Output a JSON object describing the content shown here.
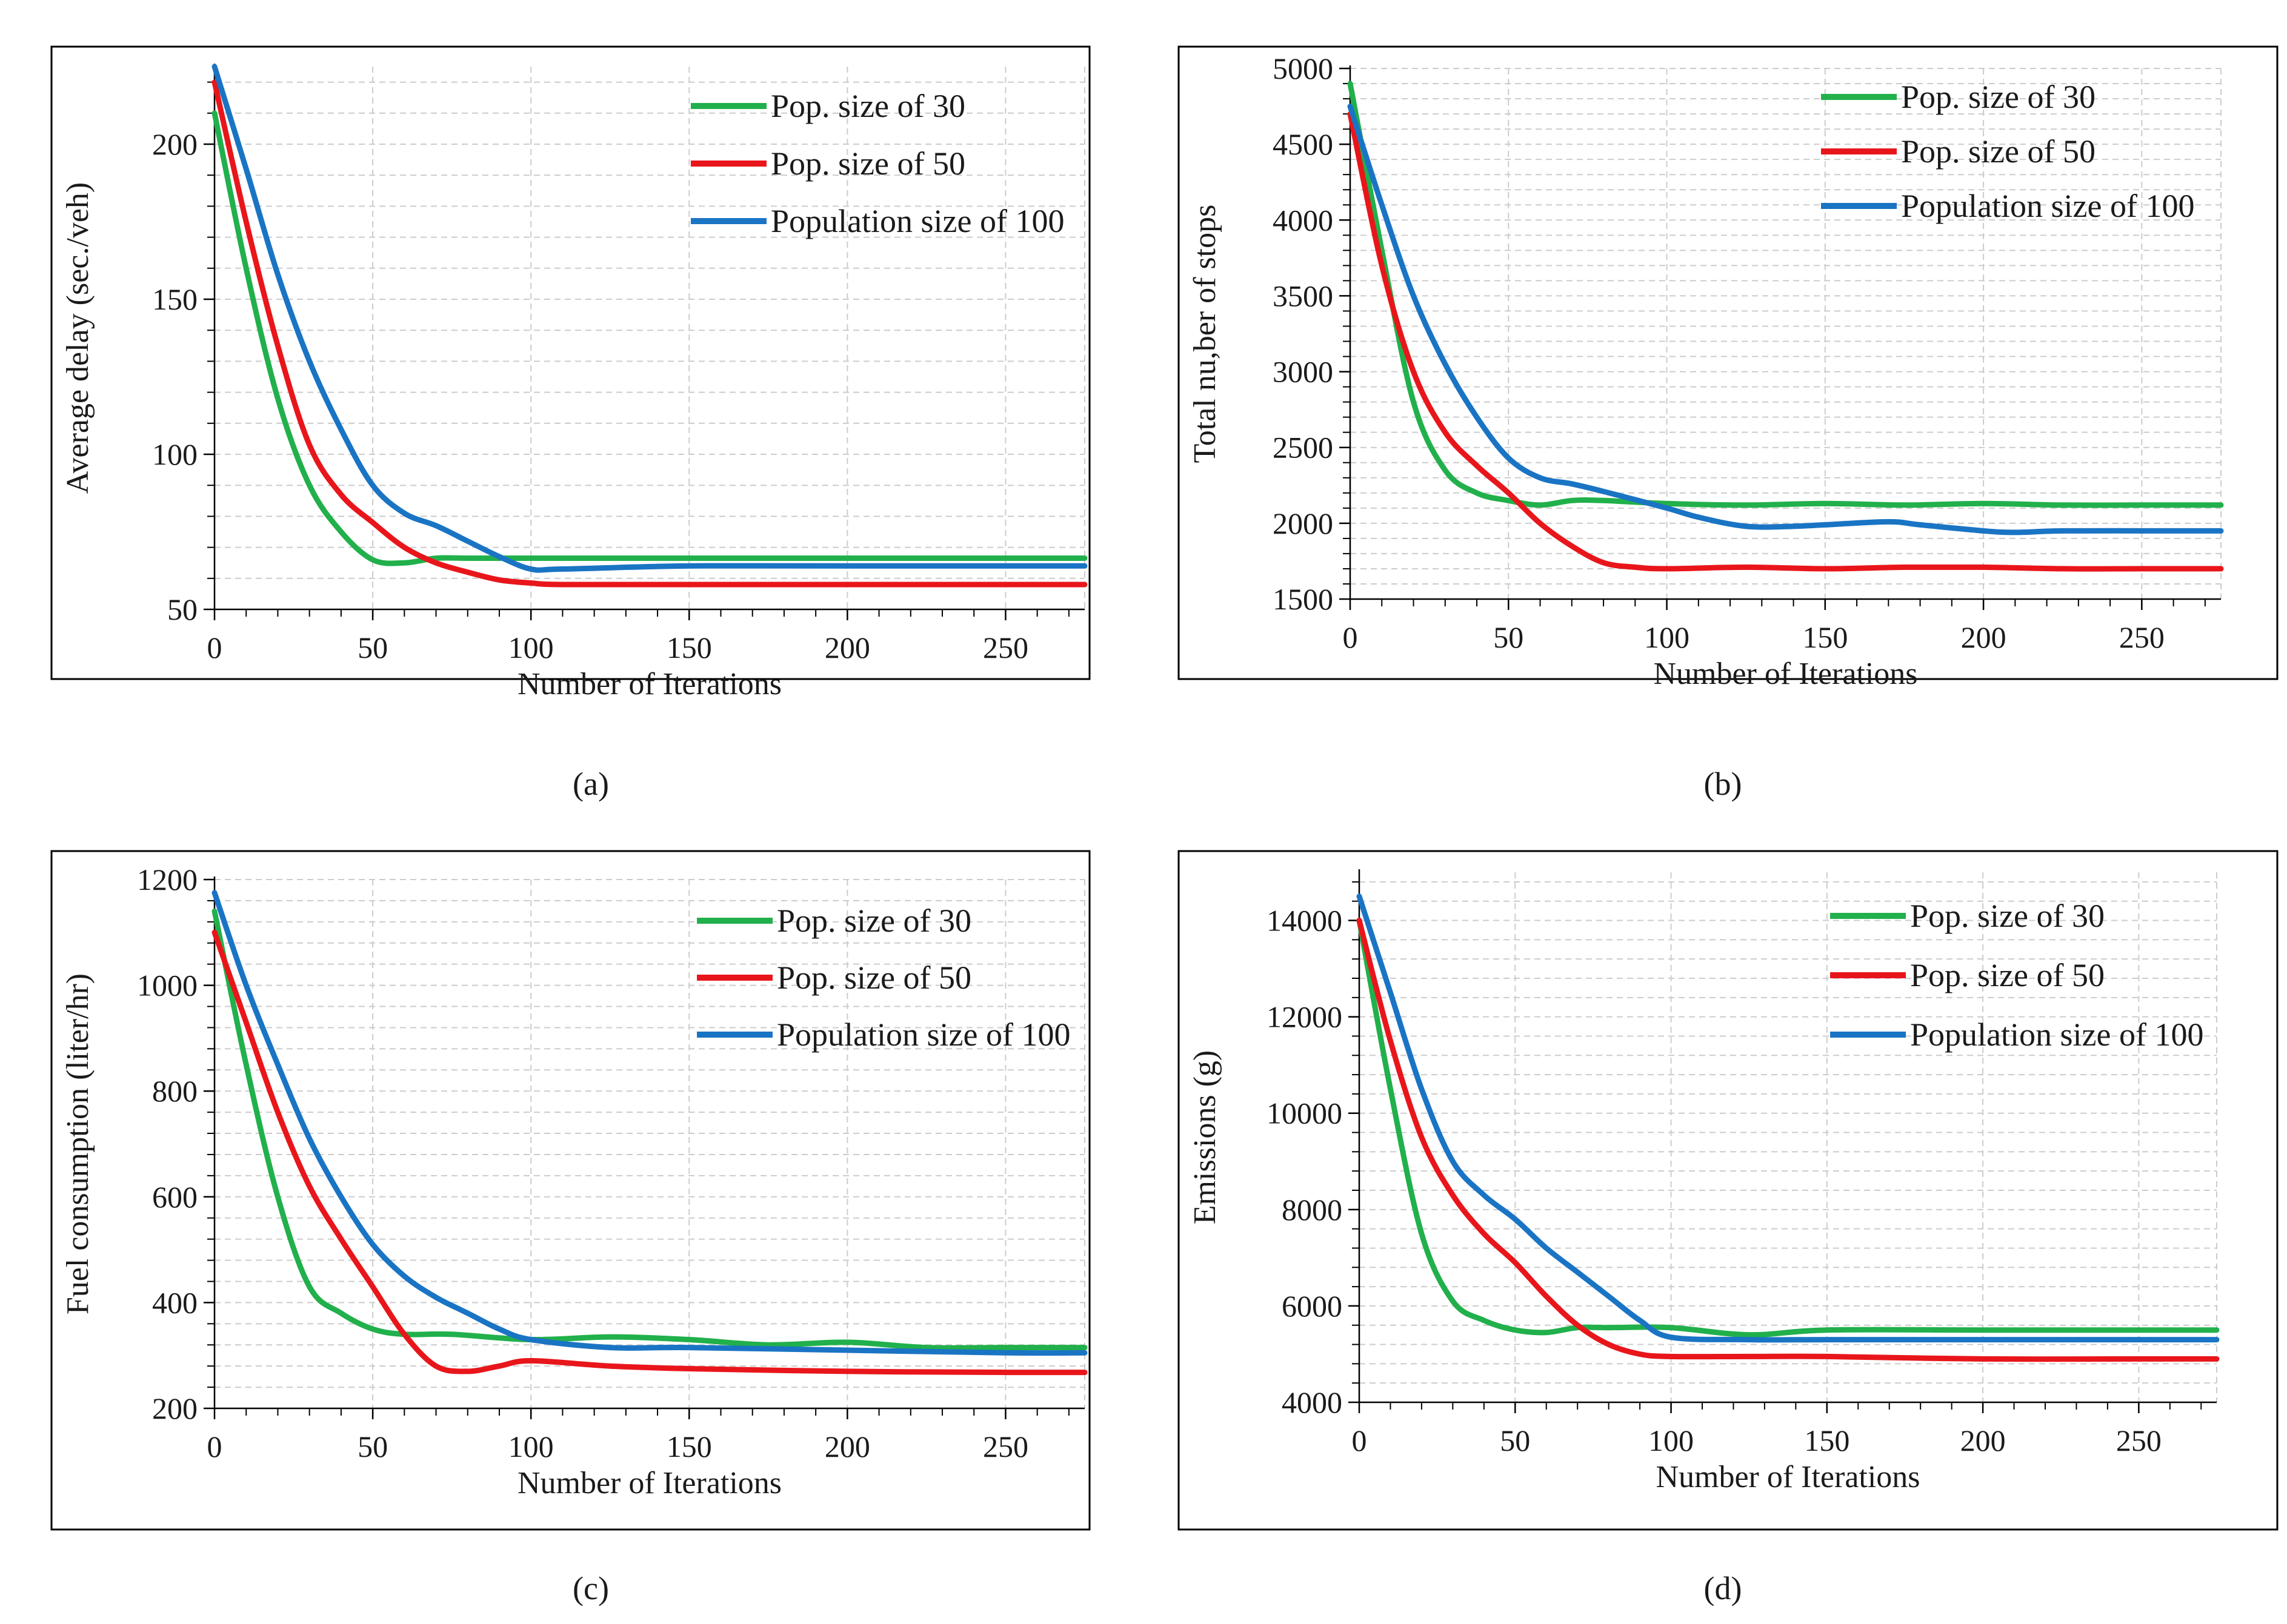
{
  "colors": {
    "green": "#21b04b",
    "red": "#e8161b",
    "blue": "#1a74c4"
  },
  "legend": [
    "Pop. size of 30",
    "Pop. size of 50",
    "Population size of 100"
  ],
  "chart_data": [
    {
      "id": "a",
      "type": "line",
      "caption": "(a)",
      "xlabel": "Number of Iterations",
      "ylabel": "Average delay (sec./veh)",
      "xlim": [
        0,
        275
      ],
      "ylim": [
        50,
        225
      ],
      "xticks": [
        0,
        50,
        100,
        150,
        200,
        250
      ],
      "yticks": [
        50,
        100,
        150,
        200
      ],
      "legend_position": "top-right",
      "series": [
        {
          "name": "Pop. size of 30",
          "color": "#21b04b",
          "x": [
            0,
            10,
            20,
            30,
            40,
            50,
            60,
            70,
            80,
            100,
            150,
            200,
            275
          ],
          "y": [
            210,
            160,
            118,
            90,
            75,
            66,
            65,
            66.5,
            66.5,
            66.5,
            66.5,
            66.5,
            66.5
          ]
        },
        {
          "name": "Pop. size of 50",
          "color": "#e8161b",
          "x": [
            0,
            10,
            20,
            30,
            40,
            50,
            60,
            70,
            80,
            90,
            100,
            110,
            150,
            200,
            275
          ],
          "y": [
            220,
            175,
            135,
            103,
            87,
            78,
            70,
            65,
            62,
            59.5,
            58.5,
            58,
            58,
            58,
            58
          ]
        },
        {
          "name": "Population size of 100",
          "color": "#1a74c4",
          "x": [
            0,
            10,
            20,
            30,
            40,
            50,
            60,
            70,
            80,
            90,
            100,
            110,
            150,
            200,
            275
          ],
          "y": [
            225,
            192,
            158,
            130,
            108,
            90,
            81,
            77,
            72,
            67,
            63,
            63,
            64,
            64,
            64
          ]
        }
      ]
    },
    {
      "id": "b",
      "type": "line",
      "caption": "(b)",
      "xlabel": "Number of Iterations",
      "ylabel": "Total nu,ber of stops",
      "xlim": [
        0,
        275
      ],
      "ylim": [
        1500,
        5000
      ],
      "xticks": [
        0,
        50,
        100,
        150,
        200,
        250
      ],
      "yticks": [
        1500,
        2000,
        2500,
        3000,
        3500,
        4000,
        4500,
        5000
      ],
      "legend_position": "top-right",
      "series": [
        {
          "name": "Pop. size of 30",
          "color": "#21b04b",
          "x": [
            0,
            10,
            20,
            30,
            40,
            50,
            60,
            70,
            80,
            100,
            125,
            150,
            175,
            200,
            225,
            250,
            275
          ],
          "y": [
            4900,
            3800,
            2800,
            2350,
            2200,
            2150,
            2120,
            2150,
            2150,
            2130,
            2120,
            2130,
            2120,
            2130,
            2120,
            2120,
            2120
          ]
        },
        {
          "name": "Pop. size of 50",
          "color": "#e8161b",
          "x": [
            0,
            10,
            20,
            30,
            40,
            50,
            60,
            70,
            80,
            90,
            100,
            125,
            150,
            175,
            200,
            225,
            250,
            275
          ],
          "y": [
            4700,
            3700,
            3000,
            2600,
            2380,
            2200,
            2000,
            1850,
            1740,
            1710,
            1700,
            1710,
            1700,
            1710,
            1710,
            1700,
            1700,
            1700
          ]
        },
        {
          "name": "Population size of 100",
          "color": "#1a74c4",
          "x": [
            0,
            10,
            20,
            30,
            40,
            50,
            60,
            70,
            80,
            100,
            110,
            125,
            140,
            150,
            170,
            180,
            200,
            210,
            225,
            250,
            275
          ],
          "y": [
            4750,
            4100,
            3500,
            3050,
            2700,
            2430,
            2300,
            2260,
            2210,
            2100,
            2040,
            1980,
            1980,
            1990,
            2010,
            1990,
            1950,
            1940,
            1950,
            1950,
            1950
          ]
        }
      ]
    },
    {
      "id": "c",
      "type": "line",
      "caption": "(c)",
      "xlabel": "Number of Iterations",
      "ylabel": "Fuel consumption (liter/hr)",
      "xlim": [
        0,
        275
      ],
      "ylim": [
        200,
        1200
      ],
      "xticks": [
        0,
        50,
        100,
        150,
        200,
        250
      ],
      "yticks": [
        200,
        400,
        600,
        800,
        1000,
        1200
      ],
      "legend_position": "top-right",
      "series": [
        {
          "name": "Pop. size of 30",
          "color": "#21b04b",
          "x": [
            0,
            10,
            20,
            30,
            40,
            50,
            60,
            75,
            100,
            125,
            150,
            175,
            200,
            225,
            250,
            275
          ],
          "y": [
            1140,
            850,
            600,
            430,
            380,
            350,
            340,
            340,
            330,
            335,
            330,
            320,
            325,
            315,
            315,
            315
          ]
        },
        {
          "name": "Pop. size of 50",
          "color": "#e8161b",
          "x": [
            0,
            10,
            20,
            30,
            40,
            50,
            60,
            70,
            80,
            90,
            100,
            125,
            150,
            200,
            250,
            275
          ],
          "y": [
            1100,
            930,
            760,
            620,
            520,
            430,
            340,
            280,
            270,
            280,
            290,
            280,
            275,
            270,
            268,
            268
          ]
        },
        {
          "name": "Population size of 100",
          "color": "#1a74c4",
          "x": [
            0,
            10,
            20,
            30,
            40,
            50,
            60,
            70,
            80,
            90,
            100,
            125,
            150,
            200,
            250,
            275
          ],
          "y": [
            1175,
            1000,
            850,
            710,
            600,
            510,
            450,
            410,
            380,
            350,
            330,
            315,
            315,
            310,
            305,
            305
          ]
        }
      ]
    },
    {
      "id": "d",
      "type": "line",
      "caption": "(d)",
      "xlabel": "Number of Iterations",
      "ylabel": "Emissions (g)",
      "xlim": [
        0,
        275
      ],
      "ylim": [
        4000,
        15000
      ],
      "xticks": [
        0,
        50,
        100,
        150,
        200,
        250
      ],
      "yticks": [
        4000,
        6000,
        8000,
        10000,
        12000,
        14000
      ],
      "legend_position": "top-right",
      "series": [
        {
          "name": "Pop. size of 30",
          "color": "#21b04b",
          "x": [
            0,
            10,
            20,
            30,
            40,
            50,
            60,
            70,
            80,
            100,
            125,
            150,
            200,
            250,
            275
          ],
          "y": [
            14000,
            10500,
            7500,
            6100,
            5700,
            5500,
            5450,
            5550,
            5550,
            5550,
            5400,
            5500,
            5500,
            5500,
            5500
          ]
        },
        {
          "name": "Pop. size of 50",
          "color": "#e8161b",
          "x": [
            0,
            10,
            20,
            30,
            40,
            50,
            60,
            70,
            80,
            90,
            100,
            125,
            150,
            200,
            250,
            275
          ],
          "y": [
            14000,
            11500,
            9500,
            8300,
            7500,
            6900,
            6200,
            5600,
            5200,
            5000,
            4950,
            4950,
            4950,
            4900,
            4900,
            4900
          ]
        },
        {
          "name": "Population size of 100",
          "color": "#1a74c4",
          "x": [
            0,
            10,
            20,
            30,
            40,
            50,
            60,
            70,
            80,
            90,
            100,
            125,
            150,
            200,
            250,
            275
          ],
          "y": [
            14500,
            12500,
            10500,
            9000,
            8300,
            7800,
            7200,
            6700,
            6200,
            5700,
            5350,
            5300,
            5300,
            5300,
            5300,
            5300
          ]
        }
      ]
    }
  ]
}
